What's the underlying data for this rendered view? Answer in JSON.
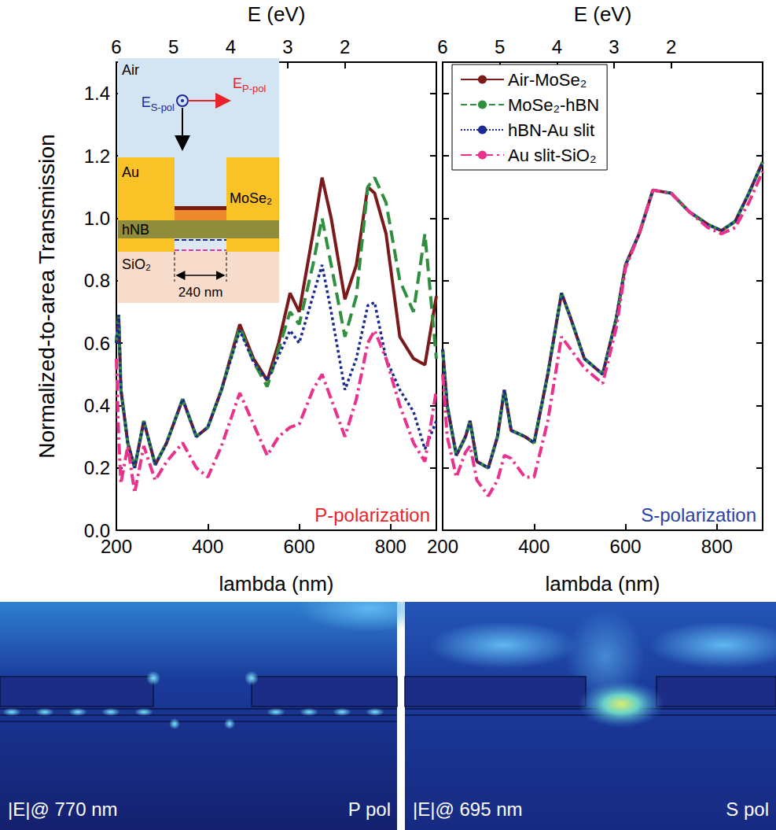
{
  "chart_data": [
    {
      "type": "line",
      "x_label": "lambda (nm)",
      "y_label": "Normalized-to-area Transmission",
      "x2_label": "E (eV)",
      "xlim": [
        200,
        900
      ],
      "xticks": [
        200,
        400,
        600,
        800
      ],
      "x2lim": [
        6,
        0.4
      ],
      "x2ticks": [
        6,
        5,
        4,
        3,
        2
      ],
      "ylim": [
        0,
        1.5
      ],
      "yticks": [
        {
          "value": 0,
          "label": "0.0"
        },
        0.2,
        0.4,
        0.6,
        0.8,
        {
          "value": 1,
          "label": "1.0"
        },
        1.2,
        1.4
      ],
      "annotations": [
        {
          "text": "P-polarization",
          "color": "#e8242a"
        }
      ],
      "x": [
        200,
        205,
        210,
        225,
        240,
        260,
        285,
        310,
        345,
        375,
        400,
        430,
        470,
        500,
        530,
        555,
        580,
        600,
        630,
        650,
        670,
        700,
        725,
        750,
        765,
        790,
        820,
        850,
        875,
        900
      ],
      "series": [
        {
          "name": "Air-MoSe₂",
          "color": "#7b1a1a",
          "line_style": "solid",
          "values": [
            0.6,
            0.69,
            0.45,
            0.28,
            0.2,
            0.35,
            0.21,
            0.28,
            0.42,
            0.3,
            0.33,
            0.45,
            0.66,
            0.55,
            0.48,
            0.6,
            0.76,
            0.7,
            0.95,
            1.13,
            1.0,
            0.74,
            0.85,
            1.1,
            1.08,
            0.95,
            0.62,
            0.55,
            0.53,
            0.75
          ]
        },
        {
          "name": "MoSe₂-hBN",
          "color": "#2f8f3f",
          "line_style": "dashed",
          "values": [
            0.6,
            0.69,
            0.45,
            0.28,
            0.2,
            0.35,
            0.21,
            0.28,
            0.42,
            0.3,
            0.33,
            0.45,
            0.65,
            0.54,
            0.46,
            0.58,
            0.7,
            0.66,
            0.85,
            1.0,
            0.85,
            0.62,
            0.75,
            1.1,
            1.13,
            1.05,
            0.8,
            0.7,
            0.95,
            0.55
          ]
        },
        {
          "name": "hBN-Au slit",
          "color": "#1c2a8f",
          "line_style": "dotted",
          "values": [
            0.6,
            0.69,
            0.45,
            0.28,
            0.2,
            0.35,
            0.21,
            0.28,
            0.42,
            0.3,
            0.33,
            0.45,
            0.64,
            0.54,
            0.48,
            0.56,
            0.64,
            0.6,
            0.75,
            0.85,
            0.7,
            0.45,
            0.55,
            0.72,
            0.73,
            0.55,
            0.45,
            0.38,
            0.26,
            0.35
          ]
        },
        {
          "name": "Au slit-SiO₂",
          "color": "#e8328c",
          "line_style": "dashdot",
          "values": [
            0.55,
            0.3,
            0.15,
            0.27,
            0.12,
            0.27,
            0.16,
            0.22,
            0.28,
            0.2,
            0.17,
            0.27,
            0.44,
            0.34,
            0.24,
            0.3,
            0.33,
            0.34,
            0.45,
            0.5,
            0.42,
            0.3,
            0.42,
            0.6,
            0.64,
            0.55,
            0.4,
            0.28,
            0.22,
            0.45
          ]
        }
      ]
    },
    {
      "type": "line",
      "x_label": "lambda (nm)",
      "x2_label": "E (eV)",
      "xlim": [
        200,
        900
      ],
      "xticks": [
        200,
        400,
        600,
        800
      ],
      "x2lim": [
        6,
        0.4
      ],
      "x2ticks": [
        6,
        5,
        4,
        3,
        2
      ],
      "ylim": [
        0,
        1.5
      ],
      "yticks": [
        {
          "value": 0,
          "label": "0.0"
        },
        0.2,
        0.4,
        0.6,
        0.8,
        {
          "value": 1,
          "label": "1.0"
        },
        1.2,
        1.4
      ],
      "tick_labels": "x",
      "legend": "top-left",
      "annotations": [
        {
          "text": "S-polarization",
          "color": "#2b3fa8"
        }
      ],
      "x": [
        200,
        210,
        230,
        250,
        260,
        275,
        300,
        320,
        335,
        350,
        380,
        400,
        430,
        460,
        480,
        510,
        550,
        580,
        600,
        630,
        660,
        700,
        740,
        780,
        810,
        840,
        870,
        900
      ],
      "series": [
        {
          "name": "Air-MoSe₂",
          "color": "#7b1a1a",
          "line_style": "solid",
          "values": [
            0.58,
            0.4,
            0.24,
            0.3,
            0.35,
            0.22,
            0.2,
            0.3,
            0.45,
            0.32,
            0.3,
            0.28,
            0.5,
            0.76,
            0.68,
            0.55,
            0.5,
            0.68,
            0.85,
            0.95,
            1.09,
            1.08,
            1.02,
            0.98,
            0.96,
            0.99,
            1.08,
            1.18
          ]
        },
        {
          "name": "MoSe₂-hBN",
          "color": "#2f8f3f",
          "line_style": "dashed",
          "values": [
            0.58,
            0.4,
            0.24,
            0.3,
            0.35,
            0.22,
            0.2,
            0.3,
            0.45,
            0.32,
            0.3,
            0.28,
            0.5,
            0.76,
            0.68,
            0.55,
            0.5,
            0.68,
            0.85,
            0.95,
            1.09,
            1.08,
            1.02,
            0.98,
            0.96,
            0.99,
            1.08,
            1.18
          ]
        },
        {
          "name": "hBN-Au slit",
          "color": "#1c2a8f",
          "line_style": "dotted",
          "values": [
            0.58,
            0.4,
            0.24,
            0.3,
            0.35,
            0.22,
            0.2,
            0.3,
            0.45,
            0.32,
            0.3,
            0.28,
            0.5,
            0.76,
            0.68,
            0.55,
            0.5,
            0.68,
            0.85,
            0.95,
            1.09,
            1.08,
            1.02,
            0.98,
            0.96,
            0.99,
            1.08,
            1.18
          ]
        },
        {
          "name": "Au slit-SiO₂",
          "color": "#e8328c",
          "line_style": "dashdot",
          "values": [
            0.5,
            0.3,
            0.17,
            0.25,
            0.27,
            0.16,
            0.11,
            0.16,
            0.24,
            0.23,
            0.17,
            0.17,
            0.35,
            0.62,
            0.58,
            0.52,
            0.47,
            0.65,
            0.84,
            0.95,
            1.09,
            1.08,
            1.02,
            0.97,
            0.95,
            0.97,
            1.05,
            1.15
          ]
        }
      ]
    }
  ],
  "inset": {
    "air": "Air",
    "metal": "Au",
    "spacer": "hNB",
    "substrate": "SiO₂",
    "material": "MoSe₂",
    "slit_width": "240 nm",
    "s_pol": {
      "base": "E",
      "sub": "S-pol"
    },
    "p_pol": {
      "base": "E",
      "sub": "P-pol"
    }
  },
  "field_maps": [
    {
      "label": "|E|@ 770 nm",
      "polarization": "P pol"
    },
    {
      "label": "|E|@ 695 nm",
      "polarization": "S pol"
    }
  ]
}
